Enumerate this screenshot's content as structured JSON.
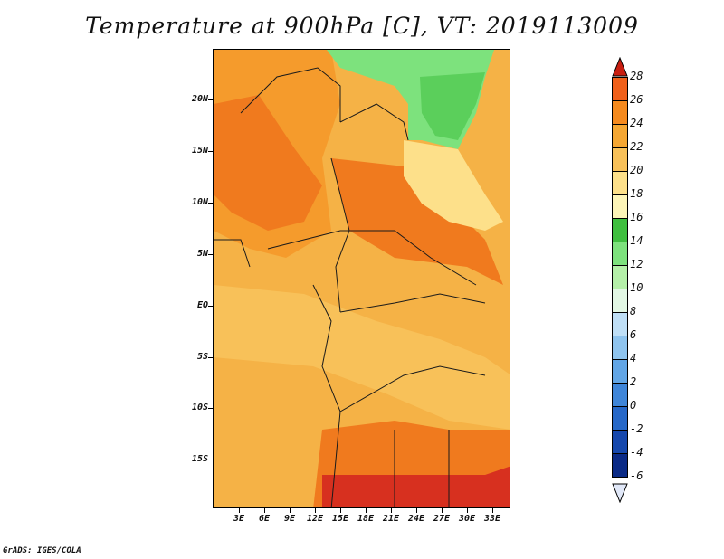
{
  "title": "Temperature at 900hPa [C], VT: 2019113009",
  "footer": "GrADS: IGES/COLA",
  "y_axis_labels": [
    "20N",
    "15N",
    "10N",
    "5N",
    "EQ",
    "5S",
    "10S",
    "15S"
  ],
  "x_axis_labels": [
    "3E",
    "6E",
    "9E",
    "12E",
    "15E",
    "18E",
    "21E",
    "24E",
    "27E",
    "30E",
    "33E"
  ],
  "colorbar": {
    "labels": [
      "28",
      "26",
      "24",
      "22",
      "20",
      "18",
      "16",
      "14",
      "12",
      "10",
      "8",
      "6",
      "4",
      "2",
      "0",
      "-2",
      "-4",
      "-6"
    ],
    "colors": [
      "#d7301f",
      "#f0601a",
      "#f58a1e",
      "#f5a733",
      "#f8c159",
      "#fde08a",
      "#fdf5b8",
      "#3fbf3f",
      "#7de27d",
      "#b4f0a8",
      "#e2f7e4",
      "#bfdff6",
      "#8fc4ee",
      "#62a6e6",
      "#3f86d9",
      "#2768c8",
      "#1648ad",
      "#0a2a86",
      "#041a5e"
    ],
    "top_arrow_color": "#c81e10",
    "bottom_arrow_color": "#e1e8f8"
  }
}
